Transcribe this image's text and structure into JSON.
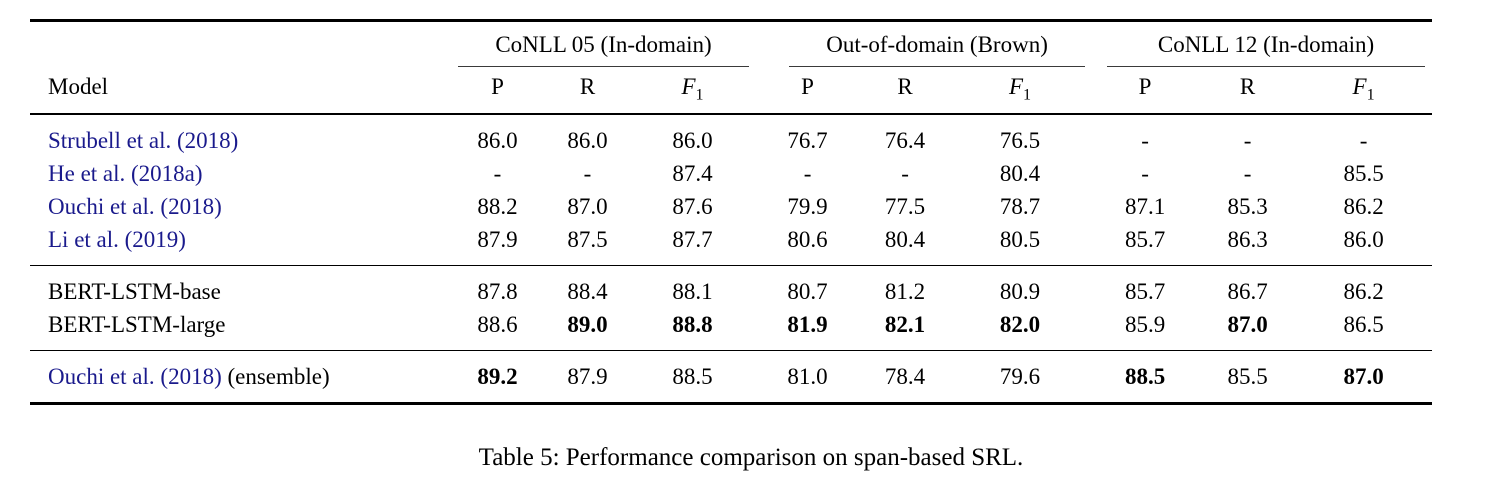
{
  "colors": {
    "citation": "#1a1a8c",
    "text": "#000000",
    "rule": "#000000"
  },
  "table": {
    "model_header": "Model",
    "groups": [
      {
        "label": "CoNLL 05 (In-domain)"
      },
      {
        "label": "Out-of-domain (Brown)"
      },
      {
        "label": "CoNLL 12 (In-domain)"
      }
    ],
    "sub_headers": [
      {
        "label": "P",
        "italic": false,
        "sub": ""
      },
      {
        "label": "R",
        "italic": false,
        "sub": ""
      },
      {
        "label": "F",
        "italic": true,
        "sub": "1"
      }
    ],
    "rows": [
      {
        "block": 0,
        "model": "Strubell et al. (2018)",
        "model_suffix": "",
        "is_citation": true,
        "values": [
          "86.0",
          "86.0",
          "86.0",
          "76.7",
          "76.4",
          "76.5",
          "-",
          "-",
          "-"
        ],
        "bold": []
      },
      {
        "block": 0,
        "model": "He et al. (2018a)",
        "model_suffix": "",
        "is_citation": true,
        "values": [
          "-",
          "-",
          "87.4",
          "-",
          "-",
          "80.4",
          "-",
          "-",
          "85.5"
        ],
        "bold": []
      },
      {
        "block": 0,
        "model": "Ouchi et al. (2018)",
        "model_suffix": "",
        "is_citation": true,
        "values": [
          "88.2",
          "87.0",
          "87.6",
          "79.9",
          "77.5",
          "78.7",
          "87.1",
          "85.3",
          "86.2"
        ],
        "bold": []
      },
      {
        "block": 0,
        "model": "Li et al. (2019)",
        "model_suffix": "",
        "is_citation": true,
        "values": [
          "87.9",
          "87.5",
          "87.7",
          "80.6",
          "80.4",
          "80.5",
          "85.7",
          "86.3",
          "86.0"
        ],
        "bold": []
      },
      {
        "block": 1,
        "model": "BERT-LSTM-base",
        "model_suffix": "",
        "is_citation": false,
        "values": [
          "87.8",
          "88.4",
          "88.1",
          "80.7",
          "81.2",
          "80.9",
          "85.7",
          "86.7",
          "86.2"
        ],
        "bold": []
      },
      {
        "block": 1,
        "model": "BERT-LSTM-large",
        "model_suffix": "",
        "is_citation": false,
        "values": [
          "88.6",
          "89.0",
          "88.8",
          "81.9",
          "82.1",
          "82.0",
          "85.9",
          "87.0",
          "86.5"
        ],
        "bold": [
          1,
          2,
          3,
          4,
          5,
          7
        ]
      },
      {
        "block": 2,
        "model": "Ouchi et al. (2018)",
        "model_suffix": " (ensemble)",
        "is_citation": true,
        "values": [
          "89.2",
          "87.9",
          "88.5",
          "81.0",
          "78.4",
          "79.6",
          "88.5",
          "85.5",
          "87.0"
        ],
        "bold": [
          0,
          6,
          8
        ]
      }
    ],
    "caption": "Table 5: Performance comparison on span-based SRL."
  }
}
